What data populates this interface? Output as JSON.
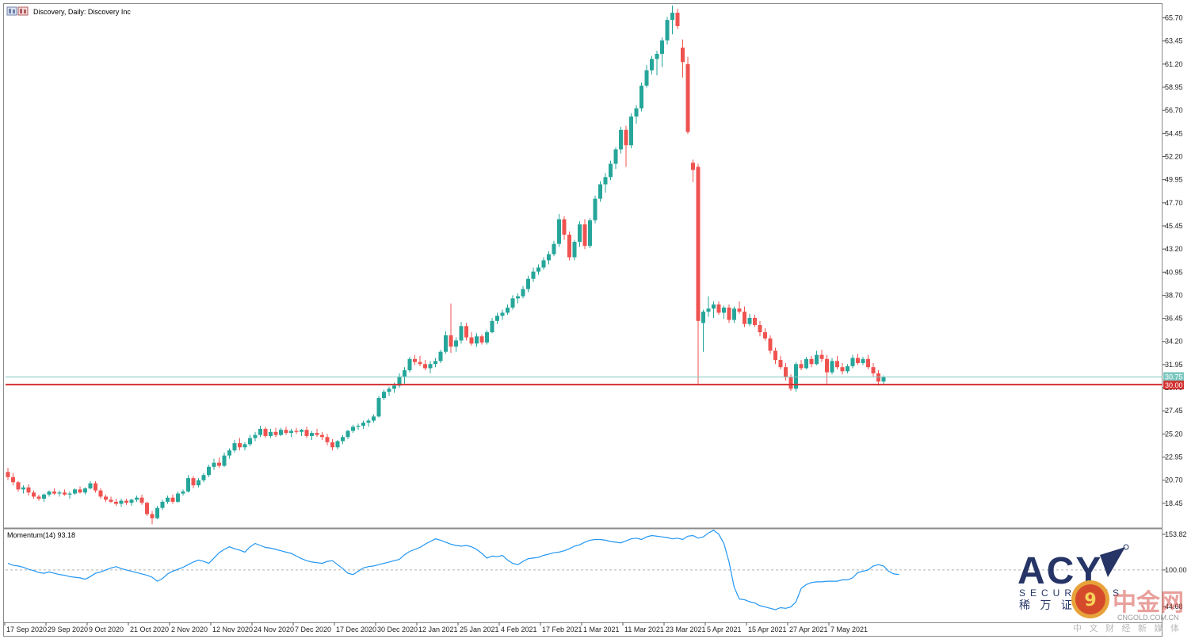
{
  "window": {
    "title": "Discovery, Daily:  Discovery Inc",
    "icon": "chart-window-icon"
  },
  "chart_data": [
    {
      "type": "candlestick",
      "title": "Discovery, Daily:  Discovery Inc",
      "ylim": [
        16.2,
        66.9
      ],
      "price_ticks": [
        "65.70",
        "63.45",
        "61.20",
        "58.95",
        "56.70",
        "54.45",
        "52.20",
        "49.95",
        "47.70",
        "45.45",
        "43.20",
        "40.95",
        "38.70",
        "36.45",
        "34.20",
        "31.95",
        "29.70",
        "27.45",
        "25.20",
        "22.95",
        "20.70",
        "18.45"
      ],
      "price_tick_values": [
        65.7,
        63.45,
        61.2,
        58.95,
        56.7,
        54.45,
        52.2,
        49.95,
        47.7,
        45.45,
        43.2,
        40.95,
        38.7,
        36.45,
        34.2,
        31.95,
        29.7,
        27.45,
        25.2,
        22.95,
        20.7,
        18.45
      ],
      "x_labels": [
        "17 Sep 2020",
        "29 Sep 2020",
        "9 Oct 2020",
        "21 Oct 2020",
        "2 Nov 2020",
        "12 Nov 2020",
        "24 Nov 2020",
        "7 Dec 2020",
        "17 Dec 2020",
        "30 Dec 2020",
        "12 Jan 2021",
        "25 Jan 2021",
        "4 Feb 2021",
        "17 Feb 2021",
        "1 Mar 2021",
        "11 Mar 2021",
        "23 Mar 2021",
        "5 Apr 2021",
        "15 Apr 2021",
        "27 Apr 2021",
        "7 May 2021"
      ],
      "x_label_bars": [
        0,
        8,
        16,
        24,
        32,
        40,
        48,
        56,
        64,
        72,
        80,
        88,
        96,
        104,
        112,
        120,
        128,
        136,
        144,
        152,
        160
      ],
      "colors": {
        "up": "#26a69a",
        "down": "#ef5350",
        "level_line": "#d32f2f",
        "price_line": "#7cc7bf"
      },
      "horizontal_line": {
        "value": 30.0,
        "label": "30.00"
      },
      "current_price": {
        "value": 30.75,
        "label": "30.75"
      },
      "ohlc": [
        [
          21.5,
          21.9,
          20.7,
          21.0
        ],
        [
          21.0,
          21.4,
          20.2,
          20.5
        ],
        [
          20.5,
          20.6,
          19.6,
          19.8
        ],
        [
          19.8,
          20.2,
          19.4,
          20.0
        ],
        [
          20.0,
          20.3,
          19.2,
          19.5
        ],
        [
          19.5,
          19.7,
          18.9,
          19.1
        ],
        [
          19.1,
          19.3,
          18.7,
          18.9
        ],
        [
          18.9,
          19.4,
          18.6,
          19.3
        ],
        [
          19.3,
          19.7,
          19.1,
          19.6
        ],
        [
          19.6,
          19.9,
          19.3,
          19.4
        ],
        [
          19.4,
          19.7,
          19.1,
          19.5
        ],
        [
          19.5,
          19.8,
          19.2,
          19.3
        ],
        [
          19.3,
          19.6,
          18.9,
          19.4
        ],
        [
          19.4,
          19.9,
          19.3,
          19.8
        ],
        [
          19.8,
          20.1,
          19.4,
          19.5
        ],
        [
          19.5,
          20.0,
          19.3,
          19.9
        ],
        [
          19.9,
          20.6,
          19.8,
          20.4
        ],
        [
          20.4,
          20.6,
          19.5,
          19.7
        ],
        [
          19.7,
          19.9,
          18.9,
          19.1
        ],
        [
          19.1,
          19.3,
          18.6,
          18.8
        ],
        [
          18.8,
          19.1,
          18.5,
          18.6
        ],
        [
          18.6,
          18.9,
          18.2,
          18.4
        ],
        [
          18.4,
          18.9,
          18.1,
          18.7
        ],
        [
          18.7,
          18.9,
          18.3,
          18.5
        ],
        [
          18.5,
          18.9,
          18.2,
          18.8
        ],
        [
          18.8,
          19.2,
          18.6,
          19.0
        ],
        [
          19.0,
          19.3,
          18.3,
          18.5
        ],
        [
          18.5,
          18.6,
          17.2,
          17.4
        ],
        [
          17.4,
          17.7,
          16.4,
          17.0
        ],
        [
          17.0,
          18.2,
          16.9,
          18.0
        ],
        [
          18.0,
          18.8,
          17.8,
          18.6
        ],
        [
          18.6,
          19.2,
          18.4,
          19.0
        ],
        [
          19.0,
          19.3,
          18.4,
          18.6
        ],
        [
          18.6,
          19.6,
          18.5,
          19.4
        ],
        [
          19.4,
          19.8,
          19.2,
          19.6
        ],
        [
          19.6,
          21.2,
          19.5,
          20.9
        ],
        [
          20.9,
          21.1,
          19.9,
          20.2
        ],
        [
          20.2,
          20.9,
          20.0,
          20.7
        ],
        [
          20.7,
          21.4,
          20.5,
          21.2
        ],
        [
          21.2,
          22.2,
          21.0,
          22.0
        ],
        [
          22.0,
          22.8,
          21.7,
          22.4
        ],
        [
          22.4,
          22.9,
          21.9,
          22.1
        ],
        [
          22.1,
          23.4,
          22.0,
          23.1
        ],
        [
          23.1,
          23.8,
          22.8,
          23.6
        ],
        [
          23.6,
          24.6,
          23.4,
          24.3
        ],
        [
          24.3,
          24.8,
          23.6,
          23.9
        ],
        [
          23.9,
          24.4,
          23.6,
          24.2
        ],
        [
          24.2,
          25.1,
          24.0,
          24.8
        ],
        [
          24.8,
          25.4,
          24.5,
          25.1
        ],
        [
          25.1,
          26.0,
          24.9,
          25.7
        ],
        [
          25.7,
          25.9,
          24.8,
          25.0
        ],
        [
          25.0,
          25.7,
          24.8,
          25.4
        ],
        [
          25.4,
          25.8,
          24.9,
          25.1
        ],
        [
          25.1,
          25.8,
          25.0,
          25.6
        ],
        [
          25.6,
          25.9,
          25.1,
          25.3
        ],
        [
          25.3,
          25.7,
          24.9,
          25.5
        ],
        [
          25.5,
          25.8,
          25.2,
          25.4
        ],
        [
          25.4,
          25.7,
          25.0,
          25.6
        ],
        [
          25.6,
          25.9,
          24.8,
          25.0
        ],
        [
          25.0,
          25.5,
          24.6,
          25.3
        ],
        [
          25.3,
          25.7,
          24.9,
          25.1
        ],
        [
          25.1,
          25.4,
          24.6,
          24.9
        ],
        [
          24.9,
          25.2,
          24.1,
          24.4
        ],
        [
          24.4,
          24.7,
          23.6,
          23.9
        ],
        [
          23.9,
          24.6,
          23.7,
          24.5
        ],
        [
          24.5,
          25.1,
          24.2,
          24.9
        ],
        [
          24.9,
          25.6,
          24.7,
          25.5
        ],
        [
          25.5,
          26.1,
          25.3,
          25.9
        ],
        [
          25.9,
          26.2,
          25.6,
          26.0
        ],
        [
          26.0,
          26.5,
          25.7,
          26.3
        ],
        [
          26.3,
          26.7,
          25.9,
          26.5
        ],
        [
          26.5,
          27.1,
          26.3,
          26.9
        ],
        [
          26.9,
          28.9,
          26.8,
          28.7
        ],
        [
          28.7,
          29.5,
          28.5,
          29.3
        ],
        [
          29.3,
          29.8,
          28.9,
          29.6
        ],
        [
          29.6,
          30.2,
          29.2,
          29.9
        ],
        [
          29.9,
          31.1,
          29.7,
          30.8
        ],
        [
          30.8,
          31.7,
          30.1,
          31.4
        ],
        [
          31.4,
          32.7,
          31.2,
          32.5
        ],
        [
          32.5,
          32.9,
          31.9,
          32.2
        ],
        [
          32.2,
          32.8,
          31.8,
          32.0
        ],
        [
          32.0,
          32.4,
          31.4,
          31.6
        ],
        [
          31.6,
          32.3,
          31.1,
          32.0
        ],
        [
          32.0,
          32.6,
          31.7,
          32.3
        ],
        [
          32.3,
          33.4,
          32.1,
          33.2
        ],
        [
          33.2,
          35.2,
          33.0,
          34.8
        ],
        [
          34.8,
          37.9,
          33.1,
          33.7
        ],
        [
          33.7,
          34.6,
          33.2,
          34.3
        ],
        [
          34.3,
          36.1,
          34.0,
          35.7
        ],
        [
          35.7,
          36.0,
          34.3,
          34.6
        ],
        [
          34.6,
          35.1,
          33.8,
          34.0
        ],
        [
          34.0,
          35.0,
          33.7,
          34.7
        ],
        [
          34.7,
          34.9,
          33.9,
          34.1
        ],
        [
          34.1,
          35.3,
          33.9,
          35.1
        ],
        [
          35.1,
          36.5,
          35.0,
          36.2
        ],
        [
          36.2,
          37.0,
          35.9,
          36.7
        ],
        [
          36.7,
          37.3,
          36.3,
          37.0
        ],
        [
          37.0,
          37.8,
          36.8,
          37.5
        ],
        [
          37.5,
          38.7,
          37.3,
          38.4
        ],
        [
          38.4,
          38.9,
          37.9,
          38.6
        ],
        [
          38.6,
          39.6,
          38.4,
          39.3
        ],
        [
          39.3,
          40.6,
          39.0,
          40.3
        ],
        [
          40.3,
          41.4,
          40.0,
          41.0
        ],
        [
          41.0,
          41.7,
          40.7,
          41.4
        ],
        [
          41.4,
          42.4,
          41.2,
          42.1
        ],
        [
          42.1,
          43.0,
          41.7,
          42.7
        ],
        [
          42.7,
          44.0,
          42.5,
          43.7
        ],
        [
          43.7,
          46.6,
          43.4,
          46.1
        ],
        [
          46.1,
          46.4,
          44.1,
          44.6
        ],
        [
          44.6,
          44.9,
          42.1,
          42.4
        ],
        [
          42.4,
          44.1,
          42.1,
          43.9
        ],
        [
          43.9,
          45.9,
          43.4,
          45.6
        ],
        [
          45.6,
          46.1,
          43.2,
          43.5
        ],
        [
          43.5,
          46.2,
          43.3,
          46.0
        ],
        [
          46.0,
          48.4,
          45.7,
          48.1
        ],
        [
          48.1,
          49.8,
          47.8,
          49.5
        ],
        [
          49.5,
          50.6,
          48.7,
          50.2
        ],
        [
          50.2,
          51.8,
          49.9,
          51.5
        ],
        [
          51.5,
          53.1,
          51.0,
          52.9
        ],
        [
          52.9,
          55.1,
          52.5,
          54.8
        ],
        [
          54.8,
          55.2,
          51.2,
          53.3
        ],
        [
          53.3,
          56.4,
          53.0,
          56.1
        ],
        [
          56.1,
          57.2,
          55.4,
          56.9
        ],
        [
          56.9,
          59.4,
          56.6,
          59.1
        ],
        [
          59.1,
          61.1,
          58.9,
          60.6
        ],
        [
          60.6,
          62.0,
          60.2,
          61.7
        ],
        [
          61.7,
          62.5,
          60.1,
          62.2
        ],
        [
          62.2,
          63.8,
          60.9,
          63.5
        ],
        [
          63.5,
          65.8,
          63.1,
          65.5
        ],
        [
          65.5,
          66.9,
          64.1,
          66.2
        ],
        [
          66.2,
          66.6,
          64.6,
          64.9
        ],
        [
          62.8,
          63.6,
          59.9,
          61.4
        ],
        [
          61.2,
          61.9,
          54.4,
          54.6
        ],
        [
          51.6,
          51.9,
          49.7,
          50.9
        ],
        [
          51.2,
          51.5,
          30.1,
          36.2
        ],
        [
          36.0,
          37.3,
          33.2,
          37.1
        ],
        [
          37.1,
          38.6,
          36.6,
          37.4
        ],
        [
          37.4,
          38.1,
          36.5,
          37.8
        ],
        [
          37.8,
          38.1,
          36.8,
          37.0
        ],
        [
          37.0,
          37.7,
          36.4,
          37.5
        ],
        [
          37.5,
          37.8,
          36.0,
          36.3
        ],
        [
          36.3,
          37.6,
          36.0,
          37.4
        ],
        [
          37.4,
          38.1,
          36.9,
          37.1
        ],
        [
          37.1,
          37.6,
          35.6,
          35.9
        ],
        [
          35.9,
          36.9,
          35.7,
          36.5
        ],
        [
          36.5,
          36.8,
          35.6,
          35.8
        ],
        [
          35.8,
          36.2,
          34.7,
          35.1
        ],
        [
          35.1,
          35.5,
          34.3,
          34.5
        ],
        [
          34.5,
          34.8,
          33.0,
          33.3
        ],
        [
          33.3,
          33.6,
          32.0,
          32.4
        ],
        [
          32.4,
          32.8,
          31.5,
          31.7
        ],
        [
          31.7,
          32.1,
          30.4,
          30.7
        ],
        [
          30.7,
          31.0,
          29.4,
          29.6
        ],
        [
          29.6,
          32.2,
          29.3,
          32.0
        ],
        [
          32.0,
          32.4,
          31.4,
          31.6
        ],
        [
          31.6,
          32.7,
          31.5,
          32.5
        ],
        [
          32.5,
          32.8,
          31.7,
          32.0
        ],
        [
          32.0,
          33.3,
          31.9,
          32.9
        ],
        [
          32.9,
          33.4,
          32.2,
          32.5
        ],
        [
          32.5,
          32.9,
          30.1,
          31.2
        ],
        [
          31.2,
          32.6,
          31.0,
          32.3
        ],
        [
          32.3,
          32.8,
          31.5,
          31.7
        ],
        [
          31.7,
          32.1,
          31.0,
          31.3
        ],
        [
          31.3,
          32.0,
          31.1,
          31.8
        ],
        [
          31.8,
          32.9,
          31.6,
          32.6
        ],
        [
          32.6,
          33.0,
          31.9,
          32.1
        ],
        [
          32.1,
          32.7,
          31.9,
          32.5
        ],
        [
          32.5,
          32.9,
          31.5,
          31.7
        ],
        [
          31.7,
          32.1,
          30.8,
          31.1
        ],
        [
          31.1,
          31.4,
          29.9,
          30.3
        ],
        [
          30.3,
          30.9,
          30.1,
          30.75
        ]
      ]
    },
    {
      "type": "line",
      "indicator_label": "Momentum(14) 93.18",
      "name": "Momentum(14)",
      "last_value": 93.18,
      "ylim": [
        22,
        161
      ],
      "ticks": [
        "153.82",
        "100.00",
        "44.68"
      ],
      "tick_values": [
        153.82,
        100.0,
        44.68
      ],
      "reference_level": 100.0,
      "color": "#2196f3",
      "values": [
        110,
        107,
        106,
        104,
        101,
        99,
        96,
        95,
        97,
        95,
        93,
        92,
        90,
        89,
        88,
        86,
        90,
        95,
        97,
        100,
        103,
        105,
        102,
        100,
        98,
        96,
        94,
        92,
        89,
        83,
        87,
        94,
        98,
        101,
        104,
        108,
        112,
        115,
        113,
        110,
        118,
        126,
        131,
        135,
        132,
        130,
        127,
        135,
        140,
        137,
        134,
        133,
        131,
        129,
        127,
        125,
        121,
        117,
        114,
        112,
        111,
        110,
        113,
        114,
        108,
        102,
        95,
        93,
        98,
        103,
        105,
        106,
        108,
        110,
        112,
        114,
        116,
        123,
        128,
        131,
        134,
        139,
        143,
        147,
        145,
        142,
        139,
        137,
        136,
        137,
        135,
        131,
        125,
        118,
        121,
        120,
        122,
        115,
        110,
        108,
        113,
        117,
        118,
        119,
        122,
        124,
        126,
        127,
        129,
        132,
        136,
        138,
        142,
        145,
        146,
        146,
        145,
        143,
        142,
        141,
        144,
        147,
        148,
        146,
        150,
        152,
        151,
        150,
        149,
        147,
        148,
        146,
        151,
        152,
        148,
        150,
        156,
        160,
        154,
        140,
        112,
        74,
        56,
        55,
        52,
        50,
        46,
        44,
        42,
        40,
        43,
        42,
        44,
        52,
        72,
        78,
        81,
        82,
        82,
        83,
        83,
        83,
        85,
        85,
        88,
        96,
        98,
        100,
        106,
        108,
        106,
        98,
        94,
        93
      ]
    }
  ],
  "watermarks": {
    "acy_letters": "ACY",
    "acy_sub": "SECURITIES",
    "acy_cn": "稀 万 证 券",
    "cngold_name": "中金网",
    "cngold_url": "CNGOLD.COM.CN",
    "cngold_tag": "中 文 财 经 新 媒 体"
  }
}
